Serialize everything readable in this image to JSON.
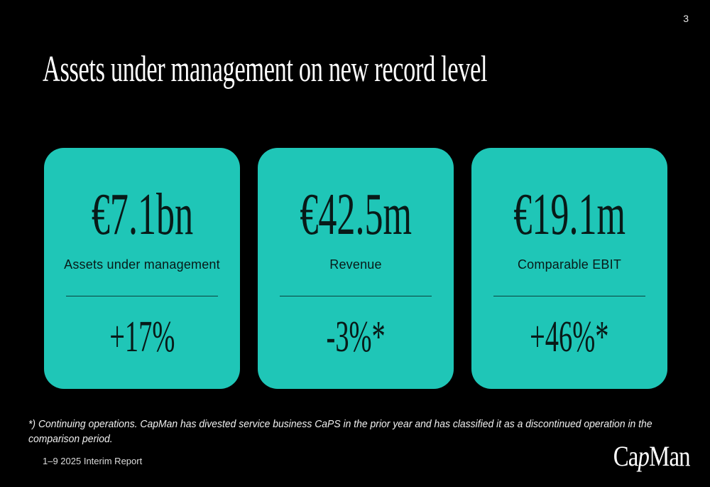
{
  "page": {
    "page_number": "3",
    "title": "Assets under management on new record level",
    "footnote_line1": "*) Continuing operations. CapMan has divested service business CaPS in the prior year and has classified it as a discontinued operation in the",
    "footnote_line2": "comparison period.",
    "footer_left": "1–9 2025 Interim Report",
    "logo": {
      "part1": "Ca",
      "part2": "p",
      "part3": "Man"
    }
  },
  "colors": {
    "background": "#000000",
    "card": "#1FC6B7",
    "card_text": "#081A18",
    "text": "#FFFFFF"
  },
  "cards": [
    {
      "value": "€7.1bn",
      "label": "Assets under management",
      "change": "+17%"
    },
    {
      "value": "€42.5m",
      "label": "Revenue",
      "change": "-3%*"
    },
    {
      "value": "€19.1m",
      "label": "Comparable EBIT",
      "change": "+46%*"
    }
  ]
}
